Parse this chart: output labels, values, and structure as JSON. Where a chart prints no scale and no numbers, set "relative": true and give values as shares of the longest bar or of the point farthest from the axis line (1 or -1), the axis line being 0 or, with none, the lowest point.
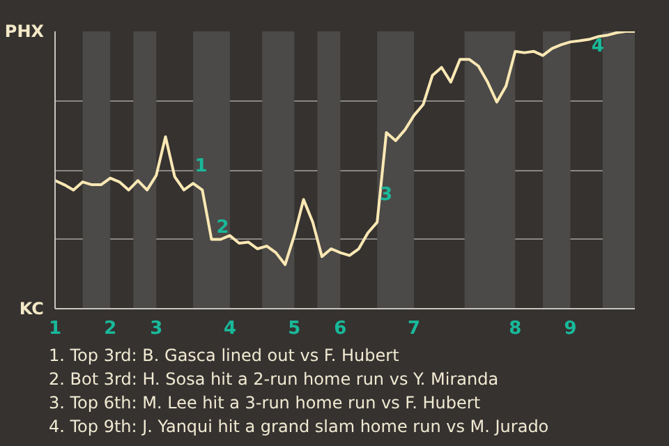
{
  "chart_data": {
    "type": "line",
    "relative": true,
    "categories": [
      "1",
      null,
      null,
      null,
      null,
      null,
      "2",
      null,
      null,
      null,
      null,
      "3",
      null,
      null,
      null,
      null,
      null,
      null,
      null,
      "4",
      null,
      null,
      null,
      null,
      null,
      null,
      "5",
      null,
      null,
      null,
      null,
      "6",
      null,
      null,
      null,
      null,
      null,
      null,
      null,
      "7",
      null,
      null,
      null,
      null,
      null,
      null,
      null,
      null,
      null,
      null,
      "8",
      null,
      null,
      null,
      null,
      null,
      "9",
      null,
      null,
      null,
      null,
      null,
      null,
      null
    ],
    "series": [
      {
        "color": "#fbe8b4",
        "values": [
          0.462,
          0.447,
          0.428,
          0.457,
          0.447,
          0.447,
          0.471,
          0.457,
          0.428,
          0.462,
          0.428,
          0.481,
          0.62,
          0.476,
          0.428,
          0.452,
          0.428,
          0.25,
          0.25,
          0.264,
          0.236,
          0.24,
          0.216,
          0.226,
          0.202,
          0.159,
          0.264,
          0.394,
          0.312,
          0.188,
          0.216,
          0.202,
          0.192,
          0.216,
          0.274,
          0.312,
          0.635,
          0.606,
          0.644,
          0.697,
          0.736,
          0.841,
          0.87,
          0.817,
          0.899,
          0.899,
          0.875,
          0.817,
          0.745,
          0.803,
          0.928,
          0.923,
          0.928,
          0.913,
          0.938,
          0.952,
          0.962,
          0.966,
          0.971,
          0.981,
          0.986,
          0.995,
          1,
          1
        ],
        "name": null
      }
    ],
    "grid": "y",
    "annotations": [
      "PHX",
      "KC",
      "1",
      "2",
      "3",
      "4",
      "1. Top 3rd: B. Gasca lined out vs F. Hubert",
      "2. Bot 3rd: H. Sosa hit a 2-run home run vs Y. Miranda",
      "3. Top 6th: M. Lee hit a 3-run home run vs F. Hubert",
      "4. Top 9th: J. Yanqui hit a grand slam home run vs M. Jurado"
    ]
  }
}
